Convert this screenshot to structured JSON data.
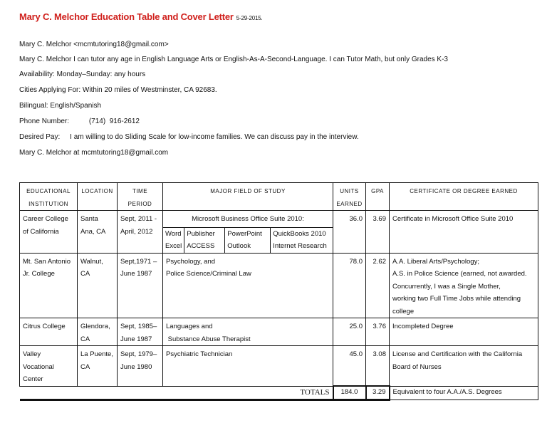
{
  "title": "Mary C. Melchor Education Table and Cover Letter",
  "date": "5-29-2015.",
  "lines": [
    "Mary C. Melchor <mcmtutoring18@gmail.com>",
    "Mary C. Melchor I can tutor any age in English Language Arts or English-As-A-Second-Language.  I can Tutor Math, but only Grades K-3",
    "Availability: Monday–Sunday: any hours",
    "Cities Applying For:  Within 20 miles of Westminster, CA 92683.",
    "Bilingual: English/Spanish",
    "Phone Number:          (714)  916-2612",
    "Desired Pay:     I am willing to do Sliding Scale for low-income families. We can discuss pay in the interview.",
    "Mary C. Melchor at mcmtutoring18@gmail.com"
  ],
  "table": {
    "headers": [
      "EDUCATIONAL\nINSTITUTION",
      "LOCATION",
      "TIME\nPERIOD",
      "MAJOR FIELD OF STUDY",
      "UNITS\nEARNED",
      "GPA",
      "CERTIFICATE OR DEGREE EARNED"
    ],
    "rows": [
      {
        "institution": "Career College\nof California",
        "location": "Santa\nAna, CA",
        "period": "Sept, 2011 -\nApril, 2012",
        "major": "Microsoft Business Office Suite 2010:",
        "sub": [
          "Word\nExcel",
          "Publisher\nACCESS",
          "PowerPoint\nOutlook",
          "QuickBooks 2010\nInternet Research"
        ],
        "units": "36.0",
        "gpa": "3.69",
        "cert": "Certificate in Microsoft Office Suite 2010"
      },
      {
        "institution": "Mt. San Antonio\n Jr. College",
        "location": "Walnut,\nCA",
        "period": "Sept,1971 –\nJune 1987",
        "major": "Psychology, and\nPolice Science/Criminal Law",
        "units": "78.0",
        "gpa": "2.62",
        "cert": "A.A. Liberal Arts/Psychology;\nA.S. in Police Science (earned, not awarded.\nConcurrently, I was a Single Mother,\nworking two Full Time Jobs while attending\ncollege"
      },
      {
        "institution": "Citrus College",
        "location": "Glendora,\nCA",
        "period": "Sept, 1985–\nJune 1987",
        "major": "Languages and\n Substance Abuse Therapist",
        "units": "25.0",
        "gpa": "3.76",
        "cert": "Incompleted Degree"
      },
      {
        "institution": "Valley\nVocational\nCenter",
        "location": "La Puente,\nCA",
        "period": "Sept, 1979–\nJune 1980",
        "major": "Psychiatric Technician",
        "units": "45.0",
        "gpa": "3.08",
        "cert": "License and Certification with the California\nBoard of Nurses"
      }
    ],
    "totals": {
      "label": "TOTALS",
      "units": "184.0",
      "gpa": "3.29",
      "cert": "Equivalent to four A.A./A.S. Degrees"
    }
  }
}
